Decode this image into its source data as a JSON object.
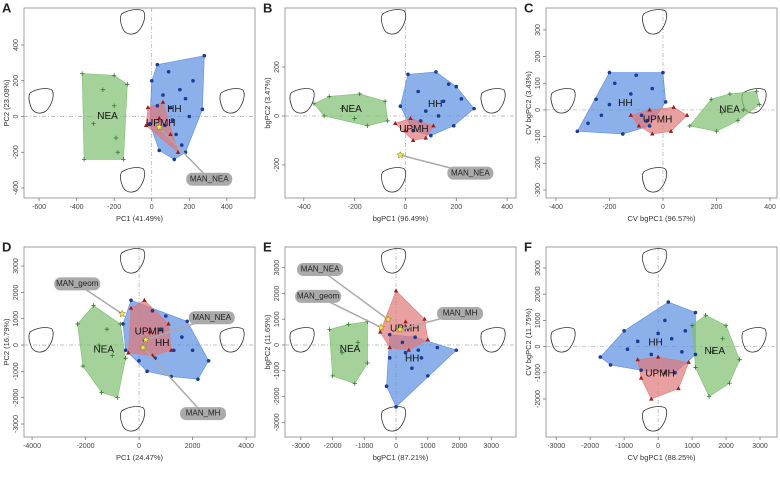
{
  "chart_data": [
    {
      "type": "scatter",
      "panel_label": "A",
      "x_label": "PC1 (41.49%)",
      "y_label": "PC2 (23.08%)",
      "xlim": [
        -680,
        550
      ],
      "ylim": [
        -456,
        607
      ],
      "xticks": [
        -600,
        -400,
        -200,
        0,
        200,
        400
      ],
      "yticks": [
        -400,
        -200,
        0,
        200,
        400
      ],
      "series": [
        {
          "name": "NEA",
          "color": "#7fbf70",
          "marker": "plus",
          "marker_color": "#2f7a2a",
          "x": [
            -370,
            -200,
            -130,
            -180,
            -150,
            -360,
            -310,
            -260,
            -200,
            -190
          ],
          "values": [
            240,
            230,
            180,
            -200,
            -240,
            -240,
            -40,
            150,
            60,
            -120
          ]
        },
        {
          "name": "HH",
          "color": "#5b8ee0",
          "marker": "dot",
          "marker_color": "#1c3a96",
          "x": [
            30,
            280,
            270,
            180,
            120,
            40,
            -10,
            0,
            60,
            100,
            150,
            200,
            70,
            130,
            180,
            220,
            90,
            30,
            160,
            110
          ],
          "values": [
            290,
            340,
            40,
            -200,
            -240,
            -190,
            -40,
            200,
            120,
            50,
            150,
            0,
            -50,
            -100,
            100,
            200,
            250,
            60,
            -160,
            -20
          ]
        },
        {
          "name": "UPMH",
          "color": "#e07878",
          "marker": "triangle",
          "marker_color": "#9c1a1a",
          "x": [
            -20,
            60,
            100,
            140,
            -30,
            40
          ],
          "values": [
            50,
            80,
            -100,
            -200,
            -50,
            -10
          ]
        }
      ],
      "annotations": [
        {
          "text": "MAN_NEA",
          "x": 40,
          "y": -60
        }
      ]
    },
    {
      "type": "scatter",
      "panel_label": "B",
      "x_label": "bgPC1 (96.49%)",
      "y_label": "bgPC2 (3.47%)",
      "xlim": [
        -474,
        435
      ],
      "ylim": [
        -335,
        441
      ],
      "xticks": [
        -400,
        -200,
        0,
        200,
        400
      ],
      "yticks": [
        -200,
        0,
        200
      ],
      "series": [
        {
          "name": "NEA",
          "color": "#7fbf70",
          "marker": "plus",
          "marker_color": "#2f7a2a",
          "x": [
            -360,
            -300,
            -180,
            -80,
            -70,
            -150,
            -320,
            -250,
            -200
          ],
          "values": [
            50,
            80,
            90,
            60,
            -20,
            -40,
            0,
            30,
            -10
          ]
        },
        {
          "name": "HH",
          "color": "#5b8ee0",
          "marker": "dot",
          "marker_color": "#1c3a96",
          "x": [
            10,
            120,
            200,
            270,
            190,
            100,
            30,
            -20,
            50,
            80,
            150,
            220,
            130,
            60,
            170
          ],
          "values": [
            170,
            180,
            120,
            30,
            -40,
            -80,
            -60,
            40,
            100,
            20,
            60,
            70,
            0,
            -20,
            130
          ]
        },
        {
          "name": "UPMH",
          "color": "#e07878",
          "marker": "triangle",
          "marker_color": "#9c1a1a",
          "x": [
            -40,
            20,
            110,
            80,
            30,
            0
          ],
          "values": [
            -30,
            -10,
            -40,
            -90,
            -100,
            -60
          ]
        }
      ],
      "annotations": [
        {
          "text": "MAN_NEA",
          "x": -20,
          "y": -160
        }
      ]
    },
    {
      "type": "scatter",
      "panel_label": "C",
      "x_label": "CV bgPC1 (96.57%)",
      "y_label": "CV bgPC2 (3.43%)",
      "xlim": [
        -437,
        426
      ],
      "ylim": [
        -330,
        382
      ],
      "xticks": [
        -400,
        -200,
        0,
        200,
        400
      ],
      "yticks": [
        -300,
        -200,
        -100,
        0,
        100,
        200,
        300
      ],
      "series": [
        {
          "name": "HH",
          "color": "#5b8ee0",
          "marker": "dot",
          "marker_color": "#1c3a96",
          "x": [
            -320,
            -250,
            -200,
            -100,
            0,
            10,
            -50,
            -150,
            -280,
            -200,
            -120,
            -80,
            -180,
            -40,
            -60,
            -230
          ],
          "values": [
            -80,
            40,
            140,
            130,
            140,
            30,
            -60,
            -90,
            -50,
            20,
            60,
            -20,
            100,
            80,
            -40,
            -20
          ]
        },
        {
          "name": "UPMH",
          "color": "#e07878",
          "marker": "triangle",
          "marker_color": "#9c1a1a",
          "x": [
            -120,
            -50,
            40,
            90,
            30,
            -40,
            -90
          ],
          "values": [
            -20,
            0,
            10,
            -20,
            -80,
            -90,
            -60
          ]
        },
        {
          "name": "NEA",
          "color": "#7fbf70",
          "marker": "plus",
          "marker_color": "#2f7a2a",
          "x": [
            100,
            180,
            250,
            350,
            360,
            280,
            200,
            300,
            220
          ],
          "values": [
            -60,
            40,
            60,
            70,
            20,
            -40,
            -80,
            0,
            -10
          ]
        }
      ],
      "annotations": []
    },
    {
      "type": "scatter",
      "panel_label": "D",
      "x_label": "PC1 (24.47%)",
      "y_label": "PC2 (16.79%)",
      "xlim": [
        -4300,
        4333
      ],
      "ylim": [
        -3494,
        3722
      ],
      "xticks": [
        -4000,
        -2000,
        0,
        2000,
        4000
      ],
      "yticks": [
        -3000,
        -2000,
        -1000,
        0,
        1000,
        2000,
        3000
      ],
      "series": [
        {
          "name": "NEA",
          "color": "#7fbf70",
          "marker": "plus",
          "marker_color": "#2f7a2a",
          "x": [
            -2300,
            -1700,
            -700,
            -500,
            -800,
            -1400,
            -2100,
            -1500,
            -1000,
            -1200
          ],
          "values": [
            800,
            1500,
            800,
            -500,
            -2000,
            -1800,
            -800,
            0,
            -400,
            600
          ]
        },
        {
          "name": "HH",
          "color": "#5b8ee0",
          "marker": "dot",
          "marker_color": "#1c3a96",
          "x": [
            -300,
            500,
            1800,
            2600,
            2200,
            1200,
            300,
            -500,
            -600,
            200,
            800,
            1300,
            600,
            1600,
            1000,
            0,
            2000
          ],
          "values": [
            1700,
            1300,
            900,
            -600,
            -1300,
            -1200,
            -1000,
            -200,
            800,
            200,
            600,
            -200,
            -500,
            300,
            1100,
            -600,
            -200
          ]
        },
        {
          "name": "UPMH",
          "color": "#e07878",
          "marker": "triangle",
          "marker_color": "#9c1a1a",
          "x": [
            -300,
            200,
            1100,
            1200,
            500,
            -400,
            400
          ],
          "values": [
            1400,
            1700,
            800,
            -200,
            -400,
            -300,
            500
          ]
        }
      ],
      "annotations": [
        {
          "text": "MAN_geom",
          "x": -630,
          "y": 1180
        },
        {
          "text": "MAN_NEA",
          "x": 250,
          "y": 200
        },
        {
          "text": "MAN_MH",
          "x": 150,
          "y": -100
        }
      ]
    },
    {
      "type": "scatter",
      "panel_label": "E",
      "x_label": "bgPC1 (87.21%)",
      "y_label": "bgPC2 (11.65%)",
      "xlim": [
        -3500,
        3780
      ],
      "ylim": [
        -3570,
        3800
      ],
      "xticks": [
        -3000,
        -2000,
        -1000,
        0,
        1000,
        2000,
        3000
      ],
      "yticks": [
        -3000,
        -2000,
        -1000,
        0,
        1000,
        2000,
        3000
      ],
      "series": [
        {
          "name": "NEA",
          "color": "#7fbf70",
          "marker": "plus",
          "marker_color": "#2f7a2a",
          "x": [
            -2100,
            -1500,
            -900,
            -900,
            -1300,
            -2000,
            -1700,
            -1200
          ],
          "values": [
            600,
            800,
            900,
            -700,
            -1500,
            -1200,
            -300,
            100
          ]
        },
        {
          "name": "HH",
          "color": "#5b8ee0",
          "marker": "dot",
          "marker_color": "#1c3a96",
          "x": [
            -200,
            600,
            1900,
            1000,
            0,
            -300,
            -200,
            300,
            800,
            500,
            1300,
            200,
            700
          ],
          "values": [
            400,
            300,
            -200,
            -1200,
            -2400,
            -1600,
            -500,
            -300,
            -500,
            -900,
            -100,
            100,
            -200
          ]
        },
        {
          "name": "UPMH",
          "color": "#e07878",
          "marker": "triangle",
          "marker_color": "#9c1a1a",
          "x": [
            -500,
            0,
            900,
            1000,
            400,
            -200,
            300
          ],
          "values": [
            500,
            2100,
            1000,
            200,
            -200,
            -100,
            900
          ]
        }
      ],
      "annotations": [
        {
          "text": "MAN_NEA",
          "x": -250,
          "y": 990
        },
        {
          "text": "MAN_geom",
          "x": -470,
          "y": 680
        },
        {
          "text": "MAN_MH",
          "x": 125,
          "y": 600
        }
      ]
    },
    {
      "type": "scatter",
      "panel_label": "F",
      "x_label": "CV bgPC1 (88.25%)",
      "y_label": "CV bgPC2 (11.75%)",
      "xlim": [
        -3300,
        3500
      ],
      "ylim": [
        -3450,
        3800
      ],
      "xticks": [
        -3000,
        -2000,
        -1000,
        0,
        1000,
        2000,
        3000
      ],
      "yticks": [
        -2000,
        -1000,
        0,
        1000,
        2000,
        3000
      ],
      "series": [
        {
          "name": "HH",
          "color": "#5b8ee0",
          "marker": "dot",
          "marker_color": "#1c3a96",
          "x": [
            -1700,
            -1000,
            300,
            1100,
            1100,
            500,
            -500,
            -1400,
            -600,
            0,
            400,
            700,
            -200,
            200,
            -900,
            800
          ],
          "values": [
            -400,
            600,
            1700,
            1300,
            -300,
            -1000,
            -900,
            -700,
            200,
            500,
            300,
            -200,
            -300,
            1000,
            -100,
            600
          ]
        },
        {
          "name": "UPMH",
          "color": "#e07878",
          "marker": "triangle",
          "marker_color": "#9c1a1a",
          "x": [
            -600,
            0,
            900,
            600,
            -200,
            -500,
            200
          ],
          "values": [
            -500,
            -400,
            -600,
            -1600,
            -2000,
            -1200,
            -1000
          ]
        },
        {
          "name": "NEA",
          "color": "#7fbf70",
          "marker": "plus",
          "marker_color": "#2f7a2a",
          "x": [
            1000,
            1400,
            2000,
            2400,
            2100,
            1500,
            1100,
            1600,
            1900
          ],
          "values": [
            800,
            1200,
            800,
            -500,
            -1400,
            -1900,
            -800,
            -200,
            300
          ]
        }
      ],
      "annotations": []
    }
  ]
}
